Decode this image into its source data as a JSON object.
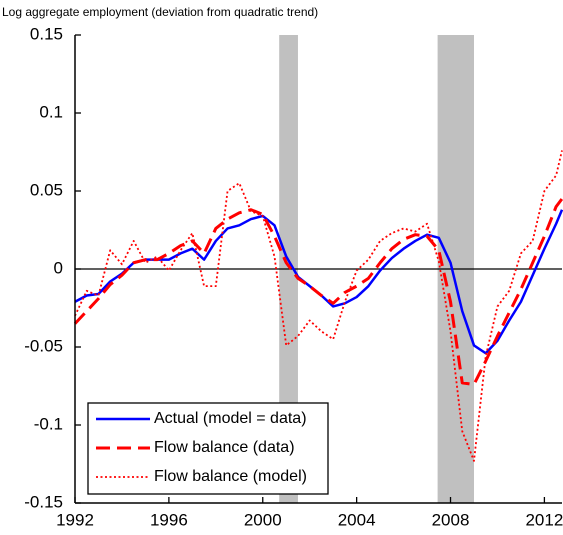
{
  "chart_data": {
    "type": "line",
    "title": "Log aggregate employment (deviation from quadratic trend)",
    "x": [
      1992,
      1992.5,
      1993,
      1993.5,
      1994,
      1994.5,
      1995,
      1995.5,
      1996,
      1996.5,
      1997,
      1997.5,
      1998,
      1998.5,
      1999,
      1999.5,
      2000,
      2000.5,
      2001,
      2001.5,
      2002,
      2002.5,
      2003,
      2003.5,
      2004,
      2004.5,
      2005,
      2005.5,
      2006,
      2006.5,
      2007,
      2007.5,
      2008,
      2008.5,
      2009,
      2009.5,
      2010,
      2010.5,
      2011,
      2011.5,
      2012,
      2012.5,
      2012.75
    ],
    "series": [
      {
        "name": "Actual (model = data)",
        "color": "#0000ff",
        "line_style": "solid",
        "values": [
          -0.021,
          -0.017,
          -0.016,
          -0.008,
          -0.003,
          0.004,
          0.006,
          0.006,
          0.006,
          0.01,
          0.013,
          0.006,
          0.018,
          0.026,
          0.028,
          0.032,
          0.034,
          0.028,
          0.008,
          -0.005,
          -0.011,
          -0.017,
          -0.024,
          -0.022,
          -0.018,
          -0.011,
          -0.001,
          0.007,
          0.013,
          0.018,
          0.022,
          0.02,
          0.004,
          -0.027,
          -0.049,
          -0.054,
          -0.046,
          -0.033,
          -0.021,
          -0.004,
          0.013,
          0.029,
          0.038
        ]
      },
      {
        "name": "Flow balance (data)",
        "color": "#ff0000",
        "line_style": "dashed",
        "values": [
          -0.035,
          -0.027,
          -0.019,
          -0.01,
          -0.004,
          0.004,
          0.006,
          0.006,
          0.01,
          0.015,
          0.018,
          0.01,
          0.026,
          0.032,
          0.036,
          0.038,
          0.035,
          0.021,
          0.004,
          -0.006,
          -0.011,
          -0.017,
          -0.022,
          -0.015,
          -0.011,
          -0.006,
          0.004,
          0.013,
          0.019,
          0.022,
          0.021,
          0.012,
          -0.021,
          -0.073,
          -0.074,
          -0.059,
          -0.043,
          -0.028,
          -0.013,
          0.004,
          0.021,
          0.04,
          0.045
        ]
      },
      {
        "name": "Flow balance (model)",
        "color": "#ff0000",
        "line_style": "dotted",
        "values": [
          -0.03,
          -0.014,
          -0.017,
          0.012,
          0.003,
          0.018,
          0.004,
          0.008,
          -0.001,
          0.012,
          0.023,
          -0.011,
          -0.011,
          0.05,
          0.055,
          0.037,
          0.034,
          0.008,
          -0.049,
          -0.043,
          -0.033,
          -0.04,
          -0.045,
          -0.021,
          -0.001,
          0.006,
          0.018,
          0.023,
          0.026,
          0.024,
          0.029,
          0.005,
          -0.04,
          -0.104,
          -0.123,
          -0.056,
          -0.024,
          -0.014,
          0.01,
          0.018,
          0.05,
          0.06,
          0.076
        ]
      }
    ],
    "shaded_periods": [
      [
        2000.7,
        2001.5
      ],
      [
        2007.45,
        2009.0
      ]
    ],
    "shade_color": "#c0c0c0",
    "xlim": [
      1992,
      2012.75
    ],
    "xticks": [
      1992,
      1996,
      2000,
      2004,
      2008,
      2012
    ],
    "ylim": [
      -0.15,
      0.15
    ],
    "yticks": [
      0.15,
      0.1,
      0.05,
      0,
      -0.05,
      -0.1,
      -0.15
    ],
    "zero_line": true,
    "legend": "lower left"
  }
}
